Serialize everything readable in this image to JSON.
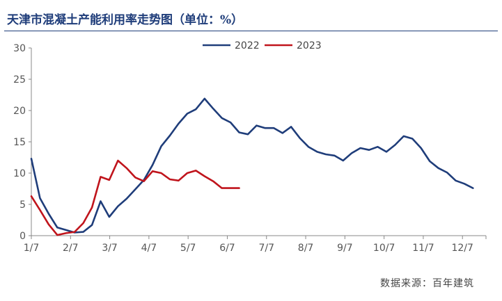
{
  "title": "天津市混凝土产能利用率走势图（单位：%）",
  "source": "数据来源：百年建筑",
  "colors": {
    "series_2022": "#1f3d7a",
    "series_2023": "#c0141c",
    "axis": "#888888"
  },
  "chart_data": {
    "type": "line",
    "title": "天津市混凝土产能利用率走势图（单位：%）",
    "xlabel": "",
    "ylabel": "",
    "ylim": [
      0,
      30
    ],
    "yticks": [
      "0",
      "5",
      "10",
      "15",
      "20",
      "25",
      "30"
    ],
    "xticks": [
      "1/7",
      "2/7",
      "3/7",
      "4/7",
      "5/7",
      "6/7",
      "7/7",
      "8/7",
      "9/7",
      "10/7",
      "11/7",
      "12/7"
    ],
    "grid": false,
    "legend": "top-center",
    "series": [
      {
        "name": "2022",
        "x": [
          0,
          1,
          2,
          3,
          4,
          5,
          6,
          7,
          8,
          9,
          10,
          11,
          12,
          13,
          14,
          15,
          16,
          17,
          18,
          19,
          20,
          21,
          22,
          23,
          24,
          25,
          26,
          27,
          28,
          29,
          30,
          31,
          32,
          33,
          34,
          35,
          36,
          37,
          38,
          39,
          40,
          41,
          42,
          43,
          44,
          45,
          46,
          47,
          48,
          49,
          50,
          51
        ],
        "values": [
          12.3,
          6.0,
          3.5,
          1.3,
          0.9,
          0.5,
          0.6,
          1.7,
          5.5,
          3.0,
          4.7,
          5.9,
          7.4,
          8.9,
          11.3,
          14.3,
          16.0,
          17.9,
          19.5,
          20.2,
          21.9,
          20.3,
          18.8,
          18.1,
          16.5,
          16.2,
          17.6,
          17.2,
          17.2,
          16.4,
          17.4,
          15.6,
          14.2,
          13.4,
          13.0,
          12.8,
          12.0,
          13.2,
          14.0,
          13.7,
          14.2,
          13.4,
          14.5,
          15.9,
          15.5,
          14.0,
          11.9,
          10.8,
          10.1,
          8.8,
          8.3,
          7.6
        ]
      },
      {
        "name": "2023",
        "x": [
          0,
          1,
          2,
          3,
          4,
          5,
          6,
          7,
          8,
          9,
          10,
          11,
          12,
          13,
          14,
          15,
          16,
          17,
          18,
          19,
          20,
          21,
          22,
          23,
          24
        ],
        "values": [
          6.3,
          4.1,
          1.8,
          0.1,
          0.4,
          0.6,
          2.0,
          4.5,
          9.4,
          8.9,
          12.0,
          10.8,
          9.3,
          8.7,
          10.3,
          10.0,
          9.0,
          8.8,
          10.0,
          10.4,
          9.5,
          8.7,
          7.6,
          7.6,
          7.6
        ]
      }
    ]
  }
}
